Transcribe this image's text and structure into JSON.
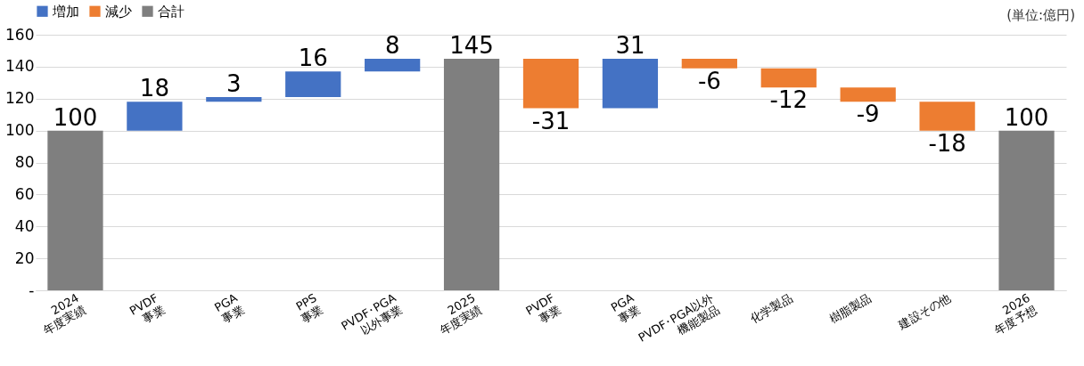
{
  "chart_data": {
    "type": "bar",
    "categories": [
      "2024\n年度実績",
      "PVDF\n事業",
      "PGA\n事業",
      "PPS\n事業",
      "PVDF･PGA\n以外事業",
      "2025\n年度実績",
      "PVDF\n事業",
      "PGA\n事業",
      "PVDF･PGA以外\n機能製品",
      "化学製品",
      "樹脂製品",
      "建設その他",
      "2026\n年度予想"
    ],
    "series": [
      {
        "name": "増加",
        "color": "#4472c4",
        "values": [
          null,
          18,
          3,
          16,
          8,
          null,
          null,
          31,
          null,
          null,
          null,
          null,
          null
        ],
        "base": [
          null,
          100,
          118,
          121,
          137,
          null,
          null,
          114,
          null,
          null,
          null,
          null,
          null
        ]
      },
      {
        "name": "減少",
        "color": "#ed7d31",
        "values": [
          null,
          null,
          null,
          null,
          null,
          null,
          -31,
          null,
          -6,
          -12,
          -9,
          -18,
          null
        ],
        "base": [
          null,
          null,
          null,
          null,
          null,
          null,
          145,
          null,
          145,
          139,
          127,
          118,
          null
        ]
      },
      {
        "name": "合計",
        "color": "#7f7f7f",
        "values": [
          100,
          null,
          null,
          null,
          null,
          145,
          null,
          null,
          null,
          null,
          null,
          null,
          100
        ],
        "base": [
          0,
          null,
          null,
          null,
          null,
          0,
          null,
          null,
          null,
          null,
          null,
          null,
          0
        ]
      }
    ],
    "ylim": [
      0,
      160
    ],
    "yticks": [
      {
        "value": 0,
        "label": "-"
      },
      20,
      40,
      60,
      80,
      100,
      120,
      140,
      160
    ],
    "grid": "y",
    "legend": "top",
    "data_labels": true,
    "annotations": [
      "(単位:億円)"
    ]
  }
}
